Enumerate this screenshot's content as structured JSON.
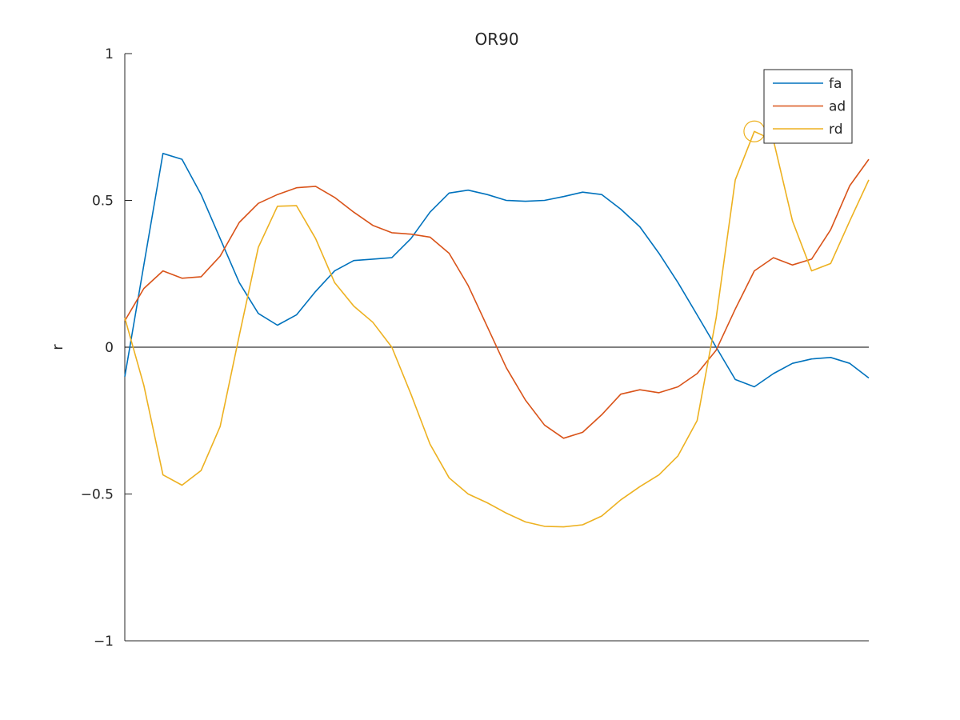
{
  "chart_data": {
    "type": "line",
    "title": "OR90",
    "xlabel": "",
    "ylabel": "r",
    "xlim": [
      1,
      40
    ],
    "ylim": [
      -1,
      1
    ],
    "yticks": [
      -1,
      -0.5,
      0,
      0.5,
      1
    ],
    "ytick_labels": [
      "−1",
      "−0.5",
      "0",
      "0.5",
      "1"
    ],
    "zero_line": true,
    "grid": false,
    "legend_position": "top-right",
    "x": [
      1,
      2,
      3,
      4,
      5,
      6,
      7,
      8,
      9,
      10,
      11,
      12,
      13,
      14,
      15,
      16,
      17,
      18,
      19,
      20,
      21,
      22,
      23,
      24,
      25,
      26,
      27,
      28,
      29,
      30,
      31,
      32,
      33,
      34,
      35,
      36,
      37,
      38,
      39,
      40
    ],
    "series": [
      {
        "name": "fa",
        "color": "#0072BD",
        "values": [
          -0.1,
          0.28,
          0.66,
          0.64,
          0.52,
          0.37,
          0.22,
          0.115,
          0.075,
          0.11,
          0.19,
          0.26,
          0.295,
          0.3,
          0.305,
          0.37,
          0.46,
          0.525,
          0.535,
          0.52,
          0.5,
          0.497,
          0.5,
          0.513,
          0.528,
          0.52,
          0.47,
          0.41,
          0.32,
          0.22,
          0.11,
          0.0,
          -0.11,
          -0.135,
          -0.09,
          -0.055,
          -0.04,
          -0.035,
          -0.055,
          -0.105
        ]
      },
      {
        "name": "ad",
        "color": "#D95319",
        "values": [
          0.09,
          0.2,
          0.26,
          0.235,
          0.24,
          0.31,
          0.425,
          0.49,
          0.52,
          0.543,
          0.548,
          0.51,
          0.46,
          0.415,
          0.39,
          0.385,
          0.375,
          0.32,
          0.21,
          0.07,
          -0.07,
          -0.18,
          -0.265,
          -0.31,
          -0.29,
          -0.23,
          -0.16,
          -0.145,
          -0.155,
          -0.135,
          -0.09,
          -0.01,
          0.13,
          0.26,
          0.305,
          0.28,
          0.3,
          0.4,
          0.55,
          0.64
        ]
      },
      {
        "name": "rd",
        "color": "#EDB120",
        "values": [
          0.1,
          -0.13,
          -0.435,
          -0.47,
          -0.42,
          -0.27,
          0.04,
          0.34,
          0.48,
          0.482,
          0.37,
          0.22,
          0.14,
          0.085,
          0.0,
          -0.16,
          -0.33,
          -0.445,
          -0.5,
          -0.53,
          -0.565,
          -0.595,
          -0.61,
          -0.612,
          -0.605,
          -0.575,
          -0.52,
          -0.475,
          -0.435,
          -0.37,
          -0.25,
          0.1,
          0.57,
          0.735,
          0.705,
          0.43,
          0.26,
          0.285,
          0.43,
          0.57
        ]
      }
    ],
    "highlight": {
      "series": "rd",
      "x": 34,
      "y": 0.735
    }
  }
}
